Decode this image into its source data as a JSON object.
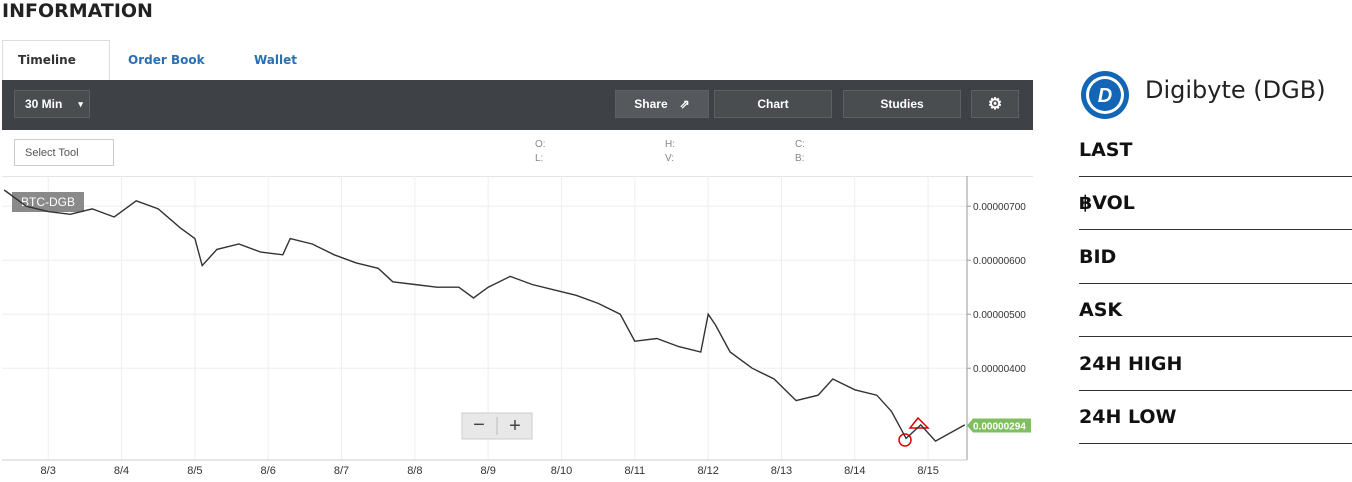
{
  "header": {
    "title": "INFORMATION"
  },
  "tabs": [
    "Timeline",
    "Order Book",
    "Wallet"
  ],
  "toolbar": {
    "interval": "30 Min",
    "share": "Share",
    "chart": "Chart",
    "studies": "Studies",
    "select_tool": "Select Tool",
    "ohlc": [
      "O:",
      "L:",
      "H:",
      "V:",
      "C:",
      "B:"
    ]
  },
  "chart_data": {
    "type": "line",
    "series": [
      {
        "name": "BTC-DGB",
        "color": "#333333",
        "x": [
          2.4,
          2.7,
          3.0,
          3.3,
          3.6,
          3.9,
          4.2,
          4.5,
          4.8,
          5.0,
          5.1,
          5.3,
          5.6,
          5.9,
          6.2,
          6.3,
          6.6,
          6.9,
          7.2,
          7.5,
          7.7,
          8.0,
          8.3,
          8.6,
          8.8,
          9.0,
          9.3,
          9.6,
          9.9,
          10.2,
          10.5,
          10.8,
          11.0,
          11.3,
          11.6,
          11.9,
          12.0,
          12.1,
          12.3,
          12.6,
          12.9,
          13.2,
          13.5,
          13.7,
          14.0,
          14.3,
          14.5,
          14.7,
          14.9,
          15.1,
          15.3,
          15.5
        ],
        "values": [
          7.3e-06,
          7e-06,
          6.9e-06,
          6.85e-06,
          6.95e-06,
          6.8e-06,
          7.1e-06,
          6.95e-06,
          6.6e-06,
          6.4e-06,
          5.9e-06,
          6.2e-06,
          6.3e-06,
          6.15e-06,
          6.1e-06,
          6.4e-06,
          6.3e-06,
          6.1e-06,
          5.95e-06,
          5.85e-06,
          5.6e-06,
          5.55e-06,
          5.5e-06,
          5.5e-06,
          5.3e-06,
          5.5e-06,
          5.7e-06,
          5.55e-06,
          5.45e-06,
          5.35e-06,
          5.2e-06,
          5e-06,
          4.5e-06,
          4.55e-06,
          4.4e-06,
          4.3e-06,
          5e-06,
          4.8e-06,
          4.3e-06,
          4e-06,
          3.8e-06,
          3.4e-06,
          3.5e-06,
          3.8e-06,
          3.6e-06,
          3.5e-06,
          3.2e-06,
          2.7e-06,
          2.95e-06,
          2.65e-06,
          2.8e-06,
          2.95e-06
        ]
      }
    ],
    "xlim": [
      2.37,
      15.53
    ],
    "xticks": [
      {
        "value": 3,
        "label": "8/3"
      },
      {
        "value": 4,
        "label": "8/4"
      },
      {
        "value": 5,
        "label": "8/5"
      },
      {
        "value": 6,
        "label": "8/6"
      },
      {
        "value": 7,
        "label": "8/7"
      },
      {
        "value": 8,
        "label": "8/8"
      },
      {
        "value": 9,
        "label": "8/9"
      },
      {
        "value": 10,
        "label": "8/10"
      },
      {
        "value": 11,
        "label": "8/11"
      },
      {
        "value": 12,
        "label": "8/12"
      },
      {
        "value": 13,
        "label": "8/13"
      },
      {
        "value": 14,
        "label": "8/14"
      },
      {
        "value": 15,
        "label": "8/15"
      }
    ],
    "ylim": [
      2.3e-06,
      7.56e-06
    ],
    "yticks": [
      {
        "value": 7e-06,
        "label": "0.00000700"
      },
      {
        "value": 6e-06,
        "label": "0.00000600"
      },
      {
        "value": 5e-06,
        "label": "0.00000500"
      },
      {
        "value": 4e-06,
        "label": "0.00000400"
      }
    ],
    "last_price": {
      "value": 2.94e-06,
      "label": "0.00000294"
    },
    "grid": true
  },
  "sidebar": {
    "title": "Digibyte (DGB)",
    "rows": [
      "LAST",
      "฿VOL",
      "BID",
      "ASK",
      "24H HIGH",
      "24H LOW"
    ]
  }
}
